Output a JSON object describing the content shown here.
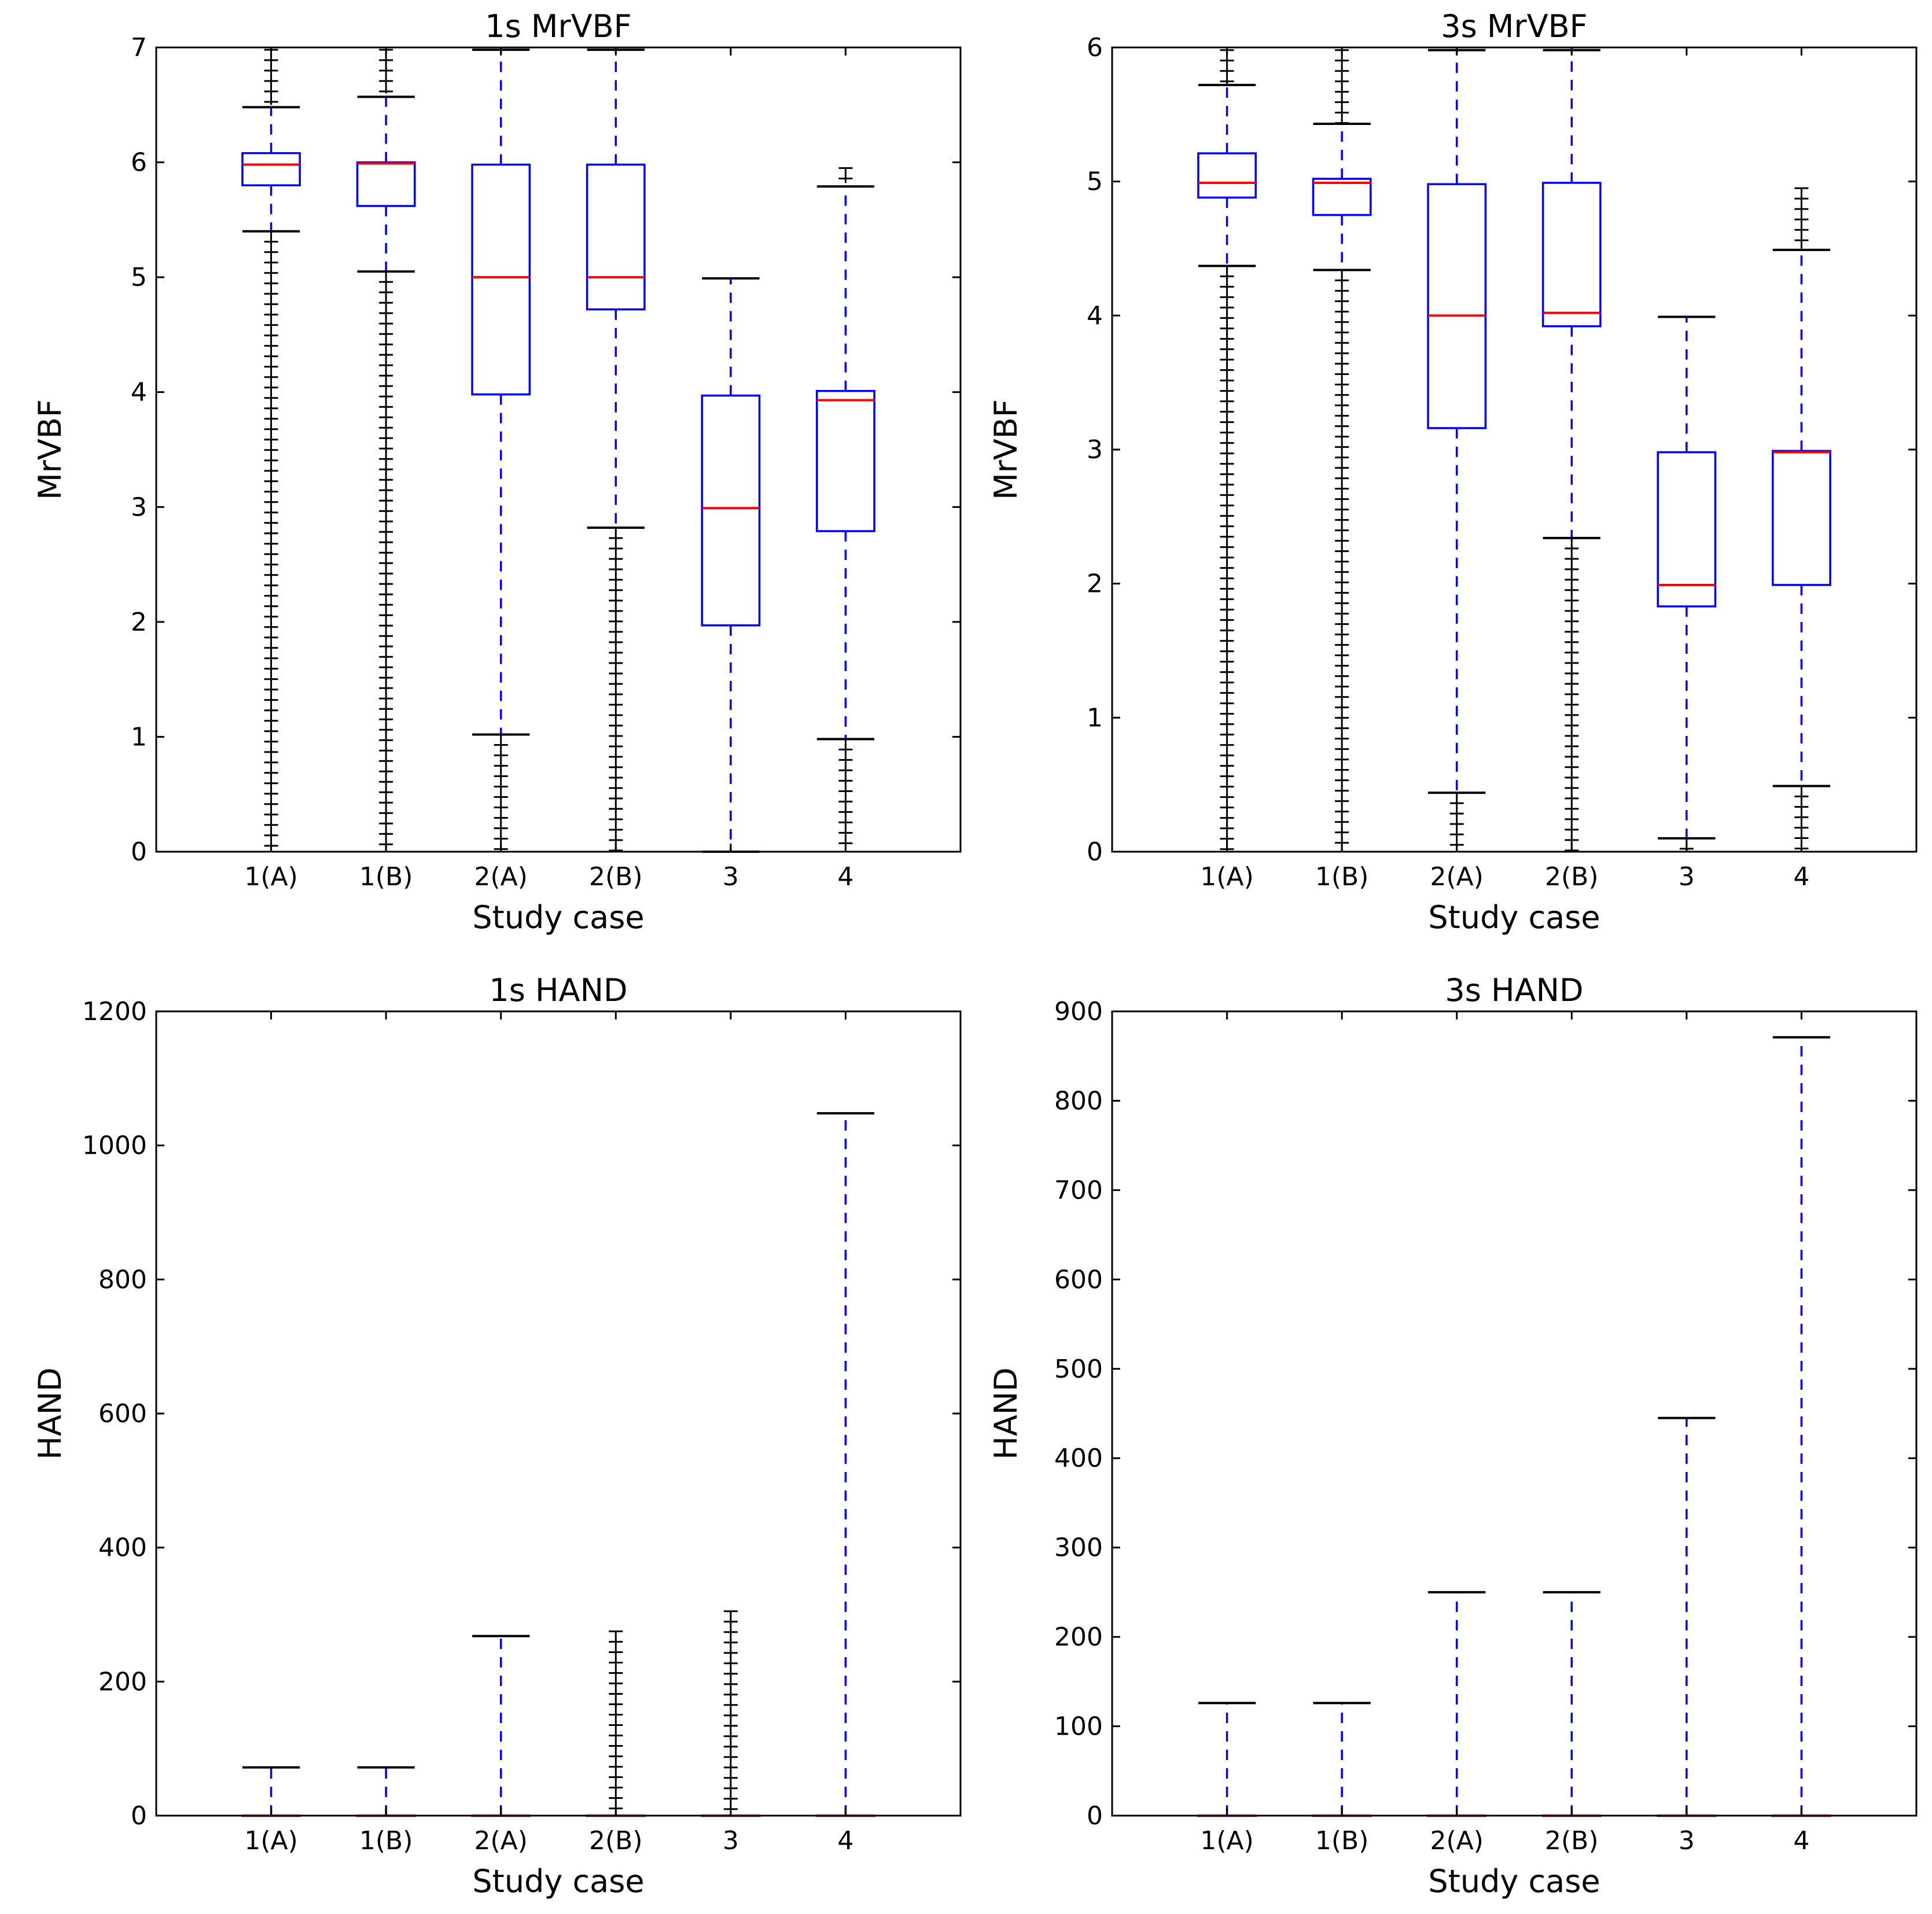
{
  "chart_data": [
    {
      "id": "p1",
      "type": "box",
      "title": "1s MrVBF",
      "xlabel": "Study case",
      "ylabel": "MrVBF",
      "ylim": [
        0,
        7
      ],
      "yticks": [
        0,
        1,
        2,
        3,
        4,
        5,
        6,
        7
      ],
      "categories": [
        "1(A)",
        "1(B)",
        "2(A)",
        "2(B)",
        "3",
        "4"
      ],
      "boxes": [
        {
          "whislo": 5.4,
          "q1": 5.8,
          "med": 5.98,
          "q3": 6.08,
          "whishi": 6.48,
          "fliers_low": [
            0,
            5.4
          ],
          "fliers_high": [
            6.5,
            6.98
          ]
        },
        {
          "whislo": 5.05,
          "q1": 5.62,
          "med": 5.99,
          "q3": 6.0,
          "whishi": 6.57,
          "fliers_low": [
            0,
            5.05
          ],
          "fliers_high": [
            6.6,
            6.98
          ]
        },
        {
          "whislo": 1.02,
          "q1": 3.98,
          "med": 5.0,
          "q3": 5.98,
          "whishi": 6.98,
          "fliers_low": [
            0,
            1.02
          ],
          "fliers_high": []
        },
        {
          "whislo": 2.82,
          "q1": 4.72,
          "med": 5.0,
          "q3": 5.98,
          "whishi": 6.98,
          "fliers_low": [
            0,
            2.82
          ],
          "fliers_high": []
        },
        {
          "whislo": 0.0,
          "q1": 1.97,
          "med": 2.99,
          "q3": 3.97,
          "whishi": 4.99,
          "fliers_low": [],
          "fliers_high": []
        },
        {
          "whislo": 0.98,
          "q1": 2.79,
          "med": 3.93,
          "q3": 4.01,
          "whishi": 5.79,
          "fliers_low": [
            0,
            0.98
          ],
          "fliers_high": [
            5.82,
            5.95
          ]
        }
      ]
    },
    {
      "id": "p2",
      "type": "box",
      "title": "3s MrVBF",
      "xlabel": "Study case",
      "ylabel": "MrVBF",
      "ylim": [
        0,
        6
      ],
      "yticks": [
        0,
        1,
        2,
        3,
        4,
        5,
        6
      ],
      "categories": [
        "1(A)",
        "1(B)",
        "2(A)",
        "2(B)",
        "3",
        "4"
      ],
      "boxes": [
        {
          "whislo": 4.37,
          "q1": 4.88,
          "med": 4.99,
          "q3": 5.21,
          "whishi": 5.72,
          "fliers_low": [
            0,
            4.37
          ],
          "fliers_high": [
            5.72,
            5.98
          ]
        },
        {
          "whislo": 4.34,
          "q1": 4.75,
          "med": 4.99,
          "q3": 5.02,
          "whishi": 5.43,
          "fliers_low": [
            0,
            4.34
          ],
          "fliers_high": [
            5.43,
            5.98
          ]
        },
        {
          "whislo": 0.44,
          "q1": 3.16,
          "med": 4.0,
          "q3": 4.98,
          "whishi": 5.98,
          "fliers_low": [
            0,
            0.44
          ],
          "fliers_high": []
        },
        {
          "whislo": 2.34,
          "q1": 3.92,
          "med": 4.02,
          "q3": 4.99,
          "whishi": 5.98,
          "fliers_low": [
            0,
            2.34
          ],
          "fliers_high": []
        },
        {
          "whislo": 0.1,
          "q1": 1.83,
          "med": 1.99,
          "q3": 2.98,
          "whishi": 3.99,
          "fliers_low": [
            0,
            0.1
          ],
          "fliers_high": []
        },
        {
          "whislo": 0.49,
          "q1": 1.99,
          "med": 2.98,
          "q3": 2.99,
          "whishi": 4.49,
          "fliers_low": [
            0,
            0.49
          ],
          "fliers_high": [
            4.5,
            4.95
          ]
        }
      ]
    },
    {
      "id": "p3",
      "type": "box",
      "title": "1s HAND",
      "xlabel": "Study case",
      "ylabel": "HAND",
      "ylim": [
        0,
        1200
      ],
      "yticks": [
        0,
        200,
        400,
        600,
        800,
        1000,
        1200
      ],
      "categories": [
        "1(A)",
        "1(B)",
        "2(A)",
        "2(B)",
        "3",
        "4"
      ],
      "boxes": [
        {
          "whislo": 0,
          "q1": 0,
          "med": 0,
          "q3": 0,
          "whishi": 72,
          "fliers_low": [],
          "fliers_high": []
        },
        {
          "whislo": 0,
          "q1": 0,
          "med": 0,
          "q3": 0,
          "whishi": 72,
          "fliers_low": [],
          "fliers_high": []
        },
        {
          "whislo": 0,
          "q1": 0,
          "med": 0,
          "q3": 0,
          "whishi": 268,
          "fliers_low": [],
          "fliers_high": []
        },
        {
          "whislo": 0,
          "q1": 0,
          "med": 0,
          "q3": 0,
          "whishi": 0,
          "fliers_low": [],
          "fliers_high": [
            0,
            275
          ]
        },
        {
          "whislo": 0,
          "q1": 0,
          "med": 0,
          "q3": 0,
          "whishi": 0,
          "fliers_low": [],
          "fliers_high": [
            0,
            305
          ]
        },
        {
          "whislo": 0,
          "q1": 0,
          "med": 0,
          "q3": 0,
          "whishi": 1048,
          "fliers_low": [],
          "fliers_high": []
        }
      ]
    },
    {
      "id": "p4",
      "type": "box",
      "title": "3s HAND",
      "xlabel": "Study case",
      "ylabel": "HAND",
      "ylim": [
        0,
        900
      ],
      "yticks": [
        0,
        100,
        200,
        300,
        400,
        500,
        600,
        700,
        800,
        900
      ],
      "categories": [
        "1(A)",
        "1(B)",
        "2(A)",
        "2(B)",
        "3",
        "4"
      ],
      "boxes": [
        {
          "whislo": 0,
          "q1": 0,
          "med": 0,
          "q3": 0,
          "whishi": 126,
          "fliers_low": [],
          "fliers_high": []
        },
        {
          "whislo": 0,
          "q1": 0,
          "med": 0,
          "q3": 0,
          "whishi": 126,
          "fliers_low": [],
          "fliers_high": []
        },
        {
          "whislo": 0,
          "q1": 0,
          "med": 0,
          "q3": 0,
          "whishi": 250,
          "fliers_low": [],
          "fliers_high": []
        },
        {
          "whislo": 0,
          "q1": 0,
          "med": 0,
          "q3": 0,
          "whishi": 250,
          "fliers_low": [],
          "fliers_high": []
        },
        {
          "whislo": 0,
          "q1": 0,
          "med": 0,
          "q3": 0,
          "whishi": 445,
          "fliers_low": [],
          "fliers_high": []
        },
        {
          "whislo": 0,
          "q1": 0,
          "med": 0,
          "q3": 0,
          "whishi": 871,
          "fliers_low": [],
          "fliers_high": []
        }
      ]
    }
  ]
}
